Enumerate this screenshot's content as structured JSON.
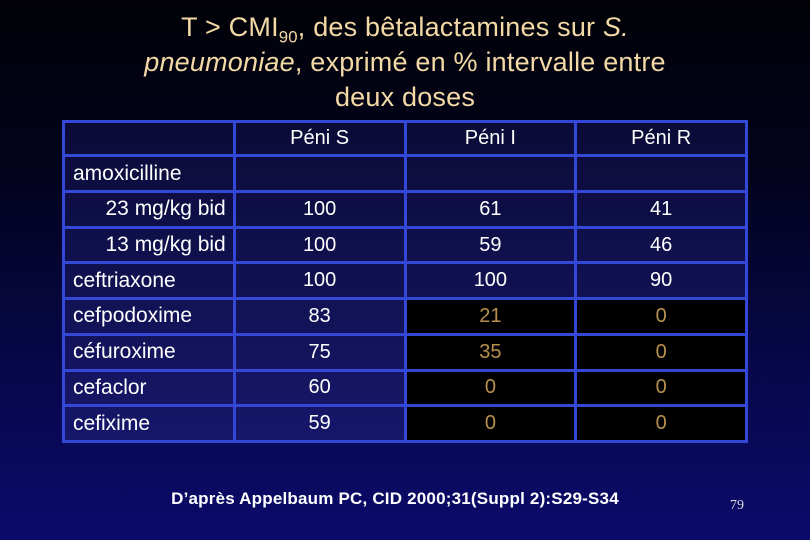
{
  "title": {
    "l1a": "T > CMI",
    "l1sub": "90",
    "l1b": ", des bêtalactamines sur ",
    "l1i": "S.",
    "l2i": "pneumoniae",
    "l2b": ", exprimé en % intervalle entre",
    "l3": "deux doses"
  },
  "table": {
    "headers": [
      "",
      "Péni S",
      "Péni I",
      "Péni R"
    ],
    "rows": [
      {
        "label": "amoxicilline",
        "values": [
          "",
          "",
          ""
        ]
      },
      {
        "label": "23 mg/kg bid",
        "values": [
          "100",
          "61",
          "41"
        ]
      },
      {
        "label": "13 mg/kg bid",
        "values": [
          "100",
          "59",
          "46"
        ]
      },
      {
        "label": "ceftriaxone",
        "values": [
          "100",
          "100",
          "90"
        ]
      },
      {
        "label": "cefpodoxime",
        "values": [
          "83",
          "21",
          "0"
        ]
      },
      {
        "label": "céfuroxime",
        "values": [
          "75",
          "35",
          "0"
        ]
      },
      {
        "label": "cefaclor",
        "values": [
          "60",
          "0",
          "0"
        ]
      },
      {
        "label": "cefixime",
        "values": [
          "59",
          "0",
          "0"
        ]
      }
    ]
  },
  "footer": {
    "citation": "D’après Appelbaum PC, CID 2000;31(Suppl 2):S29-S34",
    "page_number": "79"
  },
  "colors": {
    "background_top": "#010107",
    "background_bottom": "#0b0b6c",
    "table_border_blue": "#3448d8",
    "cell_navy_top": "#0b0b38",
    "cell_navy_bottom": "#17176b",
    "cell_black": "#000000",
    "value_gold": "#b8904e",
    "text_white": "#ffffff",
    "title_tan": "#f2d9a6"
  }
}
